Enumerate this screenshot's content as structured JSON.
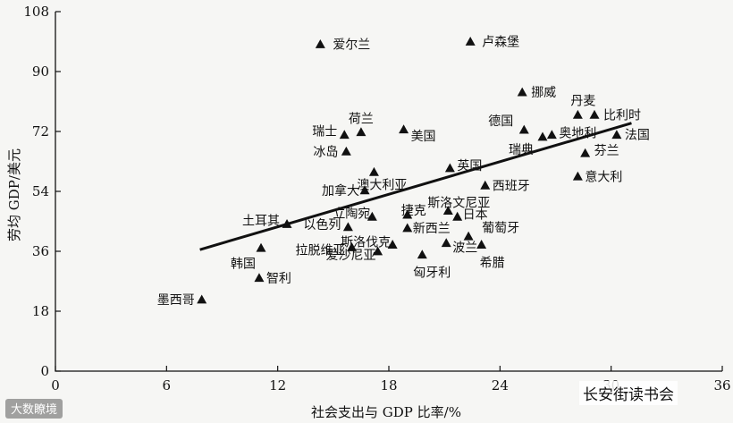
{
  "chart_data": {
    "type": "scatter",
    "xlabel": "社会支出与 GDP 比率/%",
    "ylabel": "劳均 GDP/美元",
    "xlim": [
      0,
      36
    ],
    "ylim": [
      0,
      108
    ],
    "x_ticks": [
      0,
      6,
      12,
      18,
      24,
      30,
      36
    ],
    "y_ticks": [
      0,
      18,
      36,
      54,
      72,
      90,
      108
    ],
    "x_tick_labels": [
      "0",
      "6",
      "12",
      "18",
      "24",
      "30",
      "36"
    ],
    "y_tick_labels": [
      "0",
      "18",
      "36",
      "54",
      "72",
      "90",
      "108"
    ],
    "grid": false,
    "points": [
      {
        "label": "爱尔兰",
        "x": 14.3,
        "y": 98.2
      },
      {
        "label": "卢森堡",
        "x": 22.4,
        "y": 99.0
      },
      {
        "label": "挪威",
        "x": 25.2,
        "y": 83.8
      },
      {
        "label": "丹麦",
        "x": 28.2,
        "y": 77.0
      },
      {
        "label": "比利时",
        "x": 29.1,
        "y": 77.0
      },
      {
        "label": "德国",
        "x": 25.3,
        "y": 72.5
      },
      {
        "label": "瑞典",
        "x": 26.3,
        "y": 70.4
      },
      {
        "label": "奥地利",
        "x": 26.8,
        "y": 71.0
      },
      {
        "label": "法国",
        "x": 30.3,
        "y": 71.0
      },
      {
        "label": "芬兰",
        "x": 28.6,
        "y": 65.5
      },
      {
        "label": "意大利",
        "x": 28.2,
        "y": 58.5
      },
      {
        "label": "荷兰",
        "x": 16.5,
        "y": 71.8
      },
      {
        "label": "瑞士",
        "x": 15.6,
        "y": 71.0
      },
      {
        "label": "美国",
        "x": 18.8,
        "y": 72.6
      },
      {
        "label": "冰岛",
        "x": 15.7,
        "y": 66.0
      },
      {
        "label": "澳大利亚",
        "x": 17.2,
        "y": 59.8
      },
      {
        "label": "英国",
        "x": 21.3,
        "y": 61.0
      },
      {
        "label": "西班牙",
        "x": 23.2,
        "y": 55.8
      },
      {
        "label": "加拿大",
        "x": 16.7,
        "y": 54.3
      },
      {
        "label": "斯洛文尼亚",
        "x": 21.2,
        "y": 48.2
      },
      {
        "label": "土耳其",
        "x": 12.5,
        "y": 44.2
      },
      {
        "label": "立陶宛",
        "x": 17.1,
        "y": 46.4
      },
      {
        "label": "捷克",
        "x": 19.0,
        "y": 47.0
      },
      {
        "label": "日本",
        "x": 21.7,
        "y": 46.4
      },
      {
        "label": "以色列",
        "x": 15.8,
        "y": 43.3
      },
      {
        "label": "新西兰",
        "x": 19.0,
        "y": 43.0
      },
      {
        "label": "葡萄牙",
        "x": 22.3,
        "y": 40.5
      },
      {
        "label": "斯洛伐克",
        "x": 18.2,
        "y": 38.0
      },
      {
        "label": "波兰",
        "x": 21.1,
        "y": 38.5
      },
      {
        "label": "拉脱维亚",
        "x": 16.0,
        "y": 37.2
      },
      {
        "label": "爱沙尼亚",
        "x": 17.4,
        "y": 36.0
      },
      {
        "label": "希腊",
        "x": 23.0,
        "y": 38.0
      },
      {
        "label": "匈牙利",
        "x": 19.8,
        "y": 35.0
      },
      {
        "label": "韩国",
        "x": 11.1,
        "y": 37.0
      },
      {
        "label": "智利",
        "x": 11.0,
        "y": 28.0
      },
      {
        "label": "墨西哥",
        "x": 7.9,
        "y": 21.5
      }
    ],
    "trendline": {
      "x": [
        7.8,
        31.1
      ],
      "y": [
        36.5,
        74.5
      ]
    }
  },
  "watermarks": {
    "left": "大数瞭境",
    "right": "长安街读书会"
  }
}
